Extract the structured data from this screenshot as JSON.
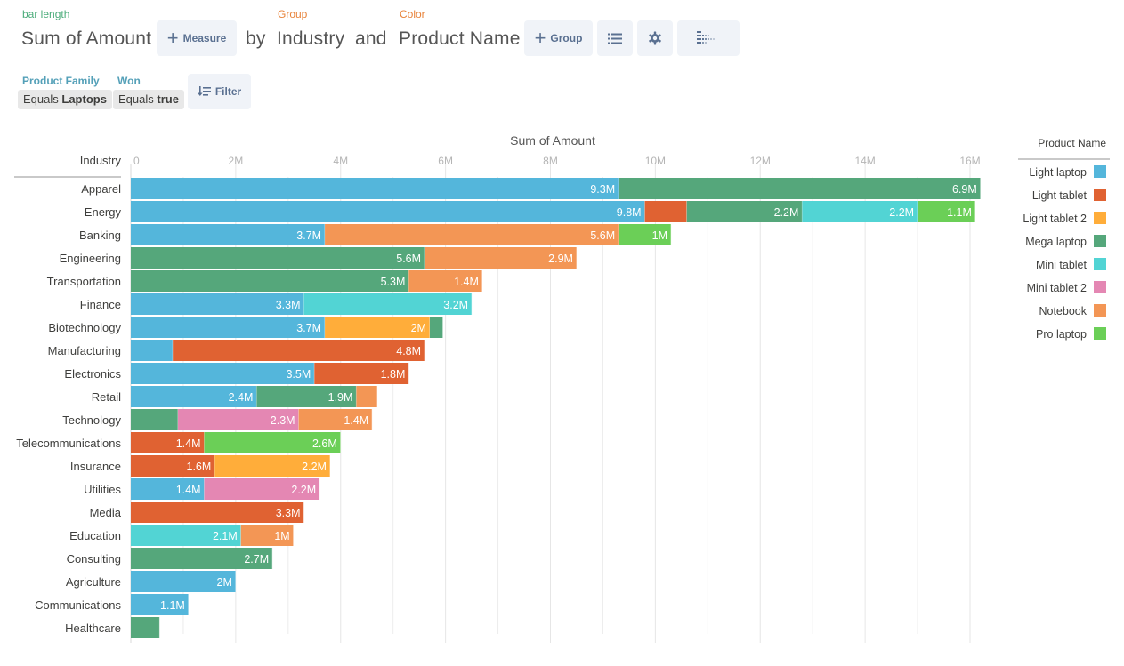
{
  "query_bar": {
    "bar_length_label": "bar length",
    "measure_value": "Sum of Amount",
    "add_measure_label": "Measure",
    "by_word": "by",
    "group_label": "Group",
    "group_value": "Industry",
    "and_word": "and",
    "color_label": "Color",
    "color_value": "Product Name",
    "add_group_label": "Group",
    "icons": [
      "plus-icon",
      "list-icon",
      "gear-icon",
      "chart-type-icon"
    ]
  },
  "filters": [
    {
      "field": "Product Family",
      "operator": "Equals",
      "value": "Laptops"
    },
    {
      "field": "Won",
      "operator": "Equals",
      "value": "true"
    }
  ],
  "filter_button_label": "Filter",
  "colors": {
    "accent_green": "#4bac7a",
    "accent_orange": "#e8833a",
    "accent_teal": "#54a0b8",
    "button_bg": "#f0f3f8",
    "button_fg": "#5a7091"
  },
  "chart_data": {
    "type": "bar",
    "orientation": "horizontal",
    "stacked": true,
    "title": "Sum of Amount",
    "xlabel": "Sum of Amount",
    "ylabel": "Industry",
    "xlim": [
      0,
      16300000
    ],
    "x_ticks": [
      0,
      2000000,
      4000000,
      6000000,
      8000000,
      10000000,
      12000000,
      14000000,
      16000000
    ],
    "x_tick_labels": [
      "0",
      "2M",
      "4M",
      "6M",
      "8M",
      "10M",
      "12M",
      "14M",
      "16M"
    ],
    "grid": true,
    "legend_title": "Product Name",
    "legend_position": "right",
    "series_names": [
      "Light laptop",
      "Light tablet",
      "Light tablet 2",
      "Mega laptop",
      "Mini tablet",
      "Mini tablet 2",
      "Notebook",
      "Pro laptop"
    ],
    "series_colors": [
      "#54b6db",
      "#e06232",
      "#ffad3a",
      "#55a77b",
      "#52d4d4",
      "#e487b3",
      "#f39655",
      "#6bcf57"
    ],
    "categories": [
      "Apparel",
      "Energy",
      "Banking",
      "Engineering",
      "Transportation",
      "Finance",
      "Biotechnology",
      "Manufacturing",
      "Electronics",
      "Retail",
      "Technology",
      "Telecommunications",
      "Insurance",
      "Utilities",
      "Media",
      "Education",
      "Consulting",
      "Agriculture",
      "Communications",
      "Healthcare"
    ],
    "rows": [
      {
        "category": "Apparel",
        "segments": [
          {
            "series": "Light laptop",
            "value": 9300000,
            "label": "9.3M"
          },
          {
            "series": "Mega laptop",
            "value": 6900000,
            "label": "6.9M"
          }
        ]
      },
      {
        "category": "Energy",
        "segments": [
          {
            "series": "Light laptop",
            "value": 9800000,
            "label": "9.8M"
          },
          {
            "series": "Light tablet",
            "value": 800000,
            "label": ""
          },
          {
            "series": "Mega laptop",
            "value": 2200000,
            "label": "2.2M"
          },
          {
            "series": "Mini tablet",
            "value": 2200000,
            "label": "2.2M"
          },
          {
            "series": "Pro laptop",
            "value": 1100000,
            "label": "1.1M"
          }
        ]
      },
      {
        "category": "Banking",
        "segments": [
          {
            "series": "Light laptop",
            "value": 3700000,
            "label": "3.7M"
          },
          {
            "series": "Notebook",
            "value": 5600000,
            "label": "5.6M"
          },
          {
            "series": "Pro laptop",
            "value": 1000000,
            "label": "1M"
          }
        ]
      },
      {
        "category": "Engineering",
        "segments": [
          {
            "series": "Mega laptop",
            "value": 5600000,
            "label": "5.6M"
          },
          {
            "series": "Notebook",
            "value": 2900000,
            "label": "2.9M"
          }
        ]
      },
      {
        "category": "Transportation",
        "segments": [
          {
            "series": "Mega laptop",
            "value": 5300000,
            "label": "5.3M"
          },
          {
            "series": "Notebook",
            "value": 1400000,
            "label": "1.4M"
          }
        ]
      },
      {
        "category": "Finance",
        "segments": [
          {
            "series": "Light laptop",
            "value": 3300000,
            "label": "3.3M"
          },
          {
            "series": "Mini tablet",
            "value": 3200000,
            "label": "3.2M"
          }
        ]
      },
      {
        "category": "Biotechnology",
        "segments": [
          {
            "series": "Light laptop",
            "value": 3700000,
            "label": "3.7M"
          },
          {
            "series": "Light tablet 2",
            "value": 2000000,
            "label": "2M"
          },
          {
            "series": "Mega laptop",
            "value": 250000,
            "label": ""
          }
        ]
      },
      {
        "category": "Manufacturing",
        "segments": [
          {
            "series": "Light laptop",
            "value": 800000,
            "label": ""
          },
          {
            "series": "Light tablet",
            "value": 4800000,
            "label": "4.8M"
          }
        ]
      },
      {
        "category": "Electronics",
        "segments": [
          {
            "series": "Light laptop",
            "value": 3500000,
            "label": "3.5M"
          },
          {
            "series": "Light tablet",
            "value": 1800000,
            "label": "1.8M"
          }
        ]
      },
      {
        "category": "Retail",
        "segments": [
          {
            "series": "Light laptop",
            "value": 2400000,
            "label": "2.4M"
          },
          {
            "series": "Mega laptop",
            "value": 1900000,
            "label": "1.9M"
          },
          {
            "series": "Notebook",
            "value": 400000,
            "label": ""
          }
        ]
      },
      {
        "category": "Technology",
        "segments": [
          {
            "series": "Mega laptop",
            "value": 900000,
            "label": ""
          },
          {
            "series": "Mini tablet 2",
            "value": 2300000,
            "label": "2.3M"
          },
          {
            "series": "Notebook",
            "value": 1400000,
            "label": "1.4M"
          }
        ]
      },
      {
        "category": "Telecommunications",
        "segments": [
          {
            "series": "Light tablet",
            "value": 1400000,
            "label": "1.4M"
          },
          {
            "series": "Pro laptop",
            "value": 2600000,
            "label": "2.6M"
          }
        ]
      },
      {
        "category": "Insurance",
        "segments": [
          {
            "series": "Light tablet",
            "value": 1600000,
            "label": "1.6M"
          },
          {
            "series": "Light tablet 2",
            "value": 2200000,
            "label": "2.2M"
          }
        ]
      },
      {
        "category": "Utilities",
        "segments": [
          {
            "series": "Light laptop",
            "value": 1400000,
            "label": "1.4M"
          },
          {
            "series": "Mini tablet 2",
            "value": 2200000,
            "label": "2.2M"
          }
        ]
      },
      {
        "category": "Media",
        "segments": [
          {
            "series": "Light tablet",
            "value": 3300000,
            "label": "3.3M"
          }
        ]
      },
      {
        "category": "Education",
        "segments": [
          {
            "series": "Mini tablet",
            "value": 2100000,
            "label": "2.1M"
          },
          {
            "series": "Notebook",
            "value": 1000000,
            "label": "1M"
          }
        ]
      },
      {
        "category": "Consulting",
        "segments": [
          {
            "series": "Mega laptop",
            "value": 2700000,
            "label": "2.7M"
          }
        ]
      },
      {
        "category": "Agriculture",
        "segments": [
          {
            "series": "Light laptop",
            "value": 2000000,
            "label": "2M"
          }
        ]
      },
      {
        "category": "Communications",
        "segments": [
          {
            "series": "Light laptop",
            "value": 1100000,
            "label": "1.1M"
          }
        ]
      },
      {
        "category": "Healthcare",
        "segments": [
          {
            "series": "Mega laptop",
            "value": 550000,
            "label": ""
          }
        ]
      }
    ]
  }
}
